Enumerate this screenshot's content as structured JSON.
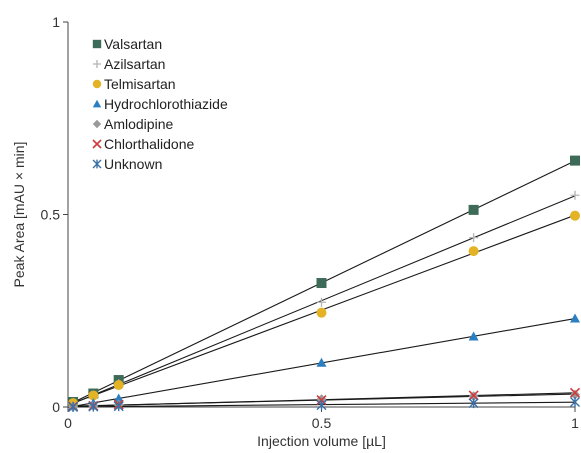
{
  "chart_data": {
    "type": "scatter",
    "title": "",
    "xlabel": "Injection volume [µL]",
    "ylabel": "Peak Area [mAU × min]",
    "xlim": [
      0,
      1
    ],
    "ylim": [
      0,
      1
    ],
    "x_ticks": [
      0,
      0.5,
      1
    ],
    "x_tick_labels": [
      "0",
      "0.5",
      "1"
    ],
    "y_ticks": [
      0,
      0.5,
      1
    ],
    "y_tick_labels": [
      "0",
      "0.5",
      "1"
    ],
    "grid": false,
    "legend_position": "top-left",
    "trendlines": "linear",
    "x": [
      0.01,
      0.05,
      0.1,
      0.5,
      0.8,
      1.0
    ],
    "series": [
      {
        "name": "Valsartan",
        "marker": "square",
        "color": "#3d6b57",
        "values": [
          0.013,
          0.035,
          0.07,
          0.322,
          0.512,
          0.64
        ]
      },
      {
        "name": "Azilsartan",
        "marker": "plus",
        "color": "#b4b4b4",
        "values": [
          0.011,
          0.03,
          0.06,
          0.272,
          0.44,
          0.55
        ]
      },
      {
        "name": "Telmisartan",
        "marker": "circle",
        "color": "#e3b325",
        "values": [
          0.01,
          0.03,
          0.057,
          0.245,
          0.405,
          0.497
        ]
      },
      {
        "name": "Hydrochlorothiazide",
        "marker": "triangle",
        "color": "#2b7fc0",
        "values": [
          0.002,
          0.01,
          0.022,
          0.115,
          0.183,
          0.23
        ]
      },
      {
        "name": "Amlodipine",
        "marker": "diamond",
        "color": "#9a9a9a",
        "values": [
          0.001,
          0.003,
          0.006,
          0.02,
          0.028,
          0.032
        ]
      },
      {
        "name": "Chlorthalidone",
        "marker": "x",
        "color": "#d03a3a",
        "values": [
          0.001,
          0.003,
          0.006,
          0.018,
          0.03,
          0.037
        ]
      },
      {
        "name": "Unknown",
        "marker": "star",
        "color": "#3a70a8",
        "values": [
          0.0,
          0.001,
          0.002,
          0.005,
          0.01,
          0.013
        ]
      }
    ]
  }
}
